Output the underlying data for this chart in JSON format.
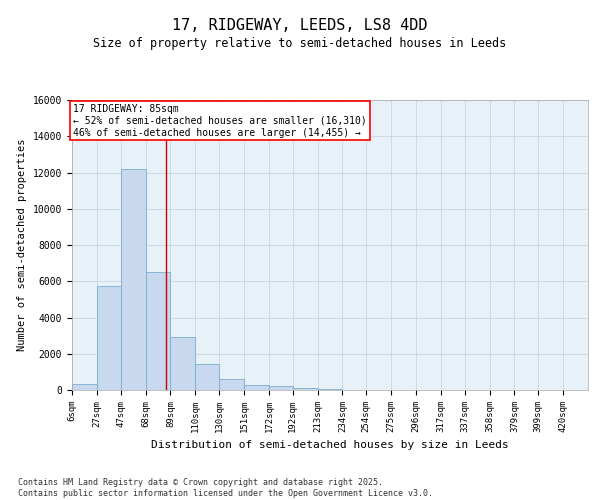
{
  "title": "17, RIDGEWAY, LEEDS, LS8 4DD",
  "subtitle": "Size of property relative to semi-detached houses in Leeds",
  "xlabel": "Distribution of semi-detached houses by size in Leeds",
  "ylabel": "Number of semi-detached properties",
  "bar_color": "#c8d8ee",
  "bar_edge_color": "#7aaed0",
  "annotation_line_color": "#cc0000",
  "annotation_property": "17 RIDGEWAY: 85sqm",
  "annotation_smaller": "← 52% of semi-detached houses are smaller (16,310)",
  "annotation_larger": "46% of semi-detached houses are larger (14,455) →",
  "property_sqm": 85,
  "bin_labels": [
    "6sqm",
    "27sqm",
    "47sqm",
    "68sqm",
    "89sqm",
    "110sqm",
    "130sqm",
    "151sqm",
    "172sqm",
    "192sqm",
    "213sqm",
    "234sqm",
    "254sqm",
    "275sqm",
    "296sqm",
    "317sqm",
    "337sqm",
    "358sqm",
    "379sqm",
    "399sqm",
    "420sqm"
  ],
  "bin_edges": [
    6,
    27,
    47,
    68,
    89,
    110,
    130,
    151,
    172,
    192,
    213,
    234,
    254,
    275,
    296,
    317,
    337,
    358,
    379,
    399,
    420
  ],
  "bar_heights": [
    350,
    5750,
    12200,
    6500,
    2900,
    1450,
    600,
    300,
    200,
    100,
    50,
    20,
    10,
    5,
    3,
    2,
    2,
    1,
    1,
    0
  ],
  "ylim": [
    0,
    16000
  ],
  "yticks": [
    0,
    2000,
    4000,
    6000,
    8000,
    10000,
    12000,
    14000,
    16000
  ],
  "footer_line1": "Contains HM Land Registry data © Crown copyright and database right 2025.",
  "footer_line2": "Contains public sector information licensed under the Open Government Licence v3.0.",
  "background_color": "#ffffff",
  "grid_color": "#c0cfe0",
  "axes_bg_color": "#e8f0f8"
}
